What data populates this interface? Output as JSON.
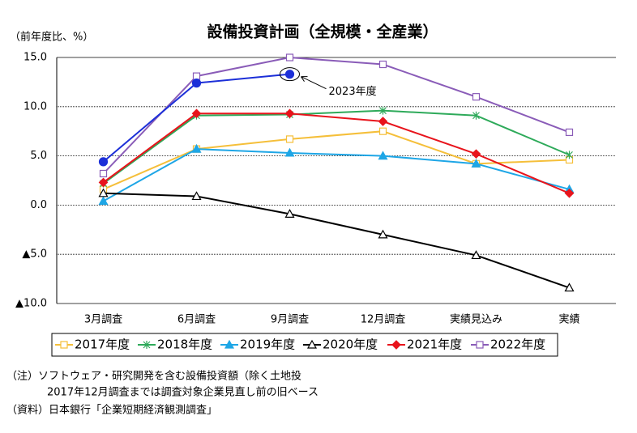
{
  "chart_data": {
    "type": "line",
    "title": "設備投資計画（全規模・全産業）",
    "y_label": "（前年度比、%）",
    "categories": [
      "3月調査",
      "6月調査",
      "9月調査",
      "12月調査",
      "実績見込み",
      "実績"
    ],
    "ylim": [
      -10,
      15
    ],
    "yticks": [
      {
        "value": 15,
        "label": "15.0"
      },
      {
        "value": 10,
        "label": "10.0"
      },
      {
        "value": 5,
        "label": "5.0"
      },
      {
        "value": 0,
        "label": "0.0"
      },
      {
        "value": -5,
        "label": "▲5.0"
      },
      {
        "value": -10,
        "label": "▲10.0"
      }
    ],
    "grid": true,
    "series": [
      {
        "name": "2017年度",
        "color": "#f5bf3a",
        "marker": "square-open",
        "values": [
          1.6,
          5.7,
          6.7,
          7.5,
          4.2,
          4.6
        ]
      },
      {
        "name": "2018年度",
        "color": "#2eaa5a",
        "marker": "star",
        "values": [
          2.2,
          9.1,
          9.2,
          9.6,
          9.1,
          5.1
        ]
      },
      {
        "name": "2019年度",
        "color": "#1ea6e6",
        "marker": "triangle",
        "values": [
          0.4,
          5.7,
          5.3,
          5.0,
          4.2,
          1.6
        ]
      },
      {
        "name": "2020年度",
        "color": "#000000",
        "marker": "triangle-open",
        "values": [
          1.2,
          0.9,
          -0.9,
          -3.0,
          -5.1,
          -8.4
        ]
      },
      {
        "name": "2021年度",
        "color": "#e8141c",
        "marker": "diamond",
        "values": [
          2.3,
          9.3,
          9.3,
          8.5,
          5.2,
          1.2
        ]
      },
      {
        "name": "2022年度",
        "color": "#8a5cb8",
        "marker": "square-open",
        "values": [
          3.2,
          13.1,
          15.0,
          14.3,
          11.0,
          7.4
        ]
      }
    ],
    "highlight": {
      "name": "2023年度",
      "color": "#1c2fd8",
      "marker": "circle",
      "values": [
        4.4,
        12.4,
        13.3,
        null,
        null,
        null
      ]
    },
    "notes": [
      "（注）ソフトウェア・研究開発を含む設備投資額（除く土地投",
      "2017年12月調査までは調査対象企業見直し前の旧ベース",
      "（資料）日本銀行「企業短期経済観測調査」"
    ]
  }
}
